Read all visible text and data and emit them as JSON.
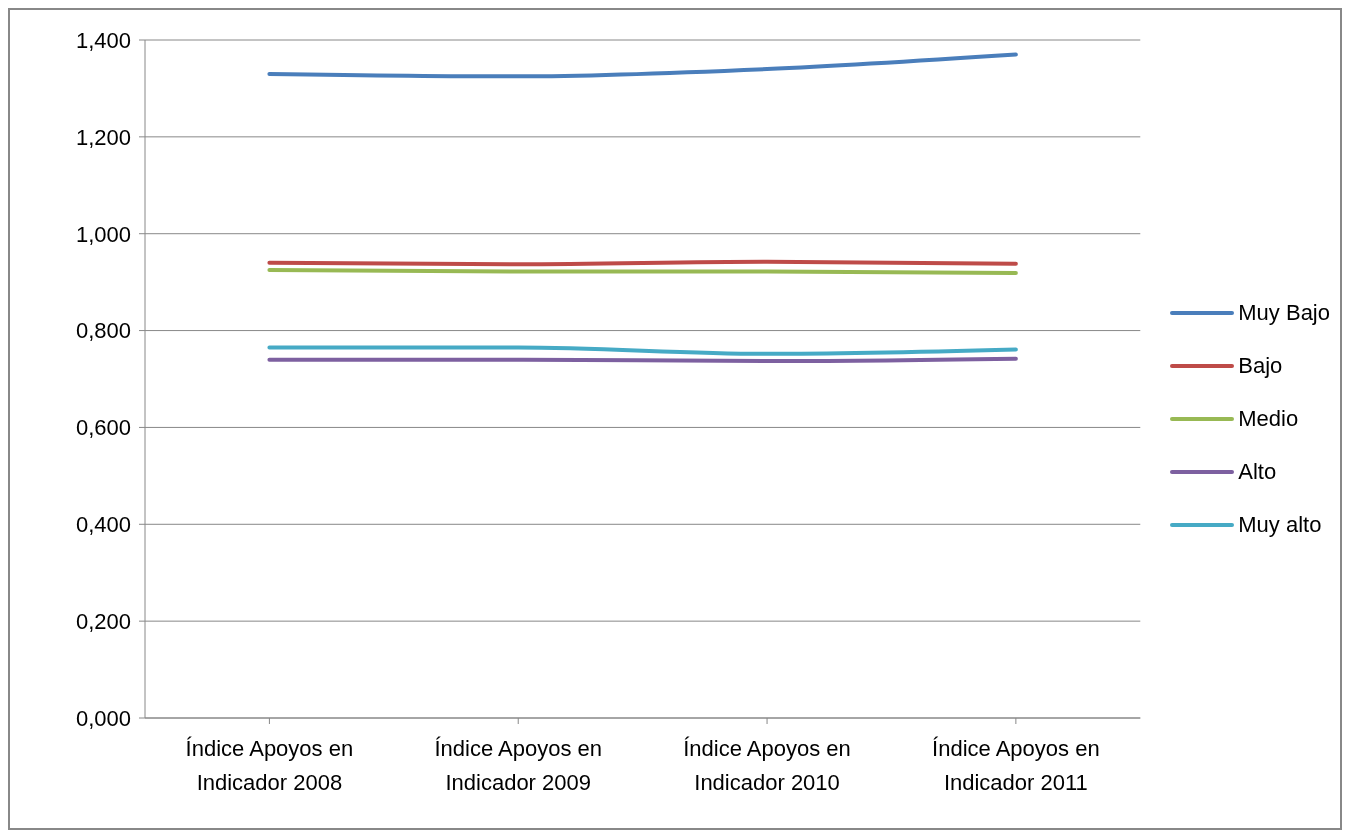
{
  "chart_data": {
    "type": "line",
    "categories": [
      "Índice Apoyos en Indicador 2008",
      "Índice Apoyos en Indicador 2009",
      "Índice Apoyos en Indicador 2010",
      "Índice Apoyos en Indicador 2011"
    ],
    "series": [
      {
        "name": "Muy Bajo",
        "color": "#4a7ebb",
        "values": [
          1.33,
          1.325,
          1.34,
          1.37
        ]
      },
      {
        "name": "Bajo",
        "color": "#be4b48",
        "values": [
          0.94,
          0.937,
          0.942,
          0.938
        ]
      },
      {
        "name": "Medio",
        "color": "#98b954",
        "values": [
          0.925,
          0.922,
          0.922,
          0.919
        ]
      },
      {
        "name": "Alto",
        "color": "#7d60a0",
        "values": [
          0.74,
          0.74,
          0.737,
          0.742
        ]
      },
      {
        "name": "Muy alto",
        "color": "#46aac5",
        "values": [
          0.765,
          0.765,
          0.752,
          0.761
        ]
      }
    ],
    "ylim": [
      0,
      1.4
    ],
    "yticks": [
      {
        "value": 0,
        "label": "0,000"
      },
      {
        "value": 0.2,
        "label": "0,200"
      },
      {
        "value": 0.4,
        "label": "0,400"
      },
      {
        "value": 0.6,
        "label": "0,600"
      },
      {
        "value": 0.8,
        "label": "0,800"
      },
      {
        "value": 1,
        "label": "1,000"
      },
      {
        "value": 1.2,
        "label": "1,200"
      },
      {
        "value": 1.4,
        "label": "1,400"
      }
    ],
    "grid": "y",
    "legend": "right",
    "marker": "none",
    "line_style": "solid"
  }
}
